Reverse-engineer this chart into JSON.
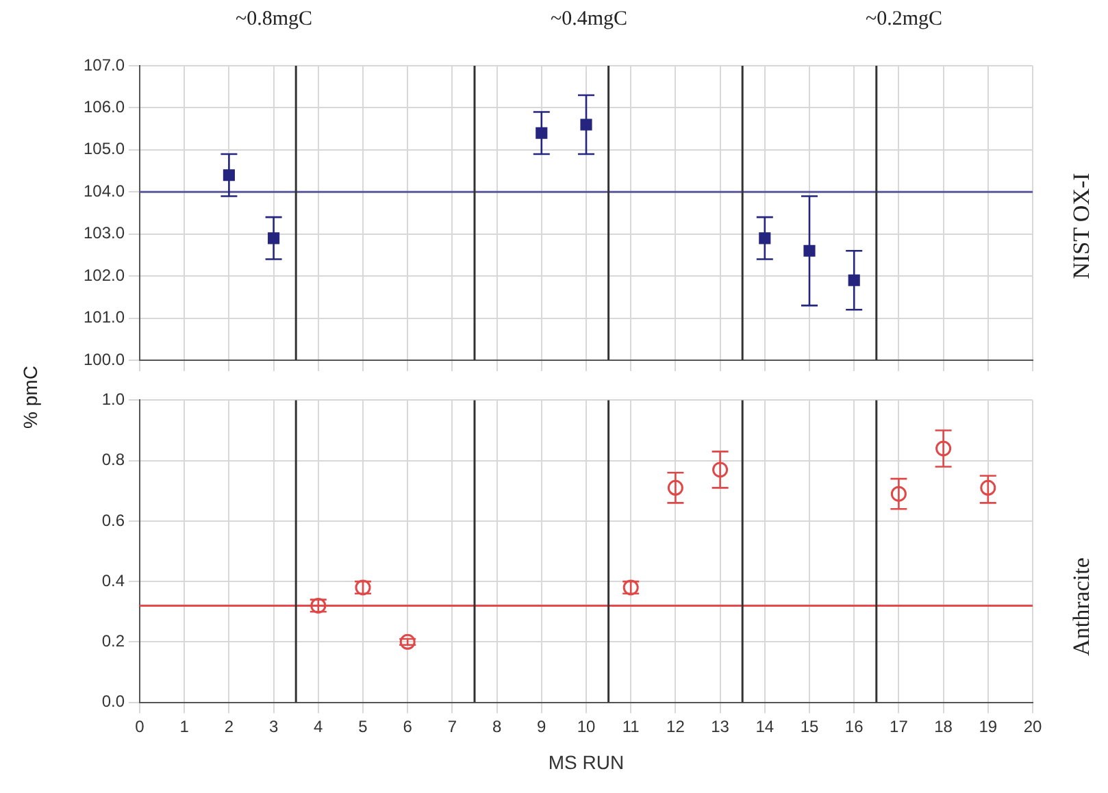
{
  "chart_data": [
    {
      "type": "scatter",
      "ylabel": null,
      "y2label": "NIST OX-I",
      "annotations": [
        "~0.8mgC",
        "~0.4mgC",
        "~0.2mgC"
      ],
      "xlim": [
        0,
        20
      ],
      "xticks": [
        0,
        1,
        2,
        3,
        4,
        5,
        6,
        7,
        8,
        9,
        10,
        11,
        12,
        13,
        14,
        15,
        16,
        17,
        18,
        19,
        20
      ],
      "ylim": [
        100,
        107
      ],
      "yticks": [
        {
          "value": 100,
          "label": "100.0"
        },
        {
          "value": 101,
          "label": "101.0"
        },
        {
          "value": 102,
          "label": "102.0"
        },
        {
          "value": 103,
          "label": "103.0"
        },
        {
          "value": 104,
          "label": "104.0"
        },
        {
          "value": 105,
          "label": "105.0"
        },
        {
          "value": 106,
          "label": "106.0"
        },
        {
          "value": 107,
          "label": "107.0"
        }
      ],
      "tick_labels": "y",
      "grid": true,
      "legend": false,
      "marker": "square",
      "series": [
        {
          "color": "#25257f",
          "x": [
            2,
            3,
            9,
            10,
            14,
            15,
            16
          ],
          "values": [
            104.4,
            102.9,
            105.4,
            105.6,
            102.9,
            102.6,
            101.9
          ],
          "errors": [
            [
              103.9,
              104.9
            ],
            [
              102.4,
              103.4
            ],
            [
              104.9,
              105.9
            ],
            [
              104.9,
              106.3
            ],
            [
              102.4,
              103.4
            ],
            [
              101.3,
              103.9
            ],
            [
              101.2,
              102.6
            ]
          ]
        }
      ],
      "ref_lines": [
        {
          "axis": "y",
          "value": 104,
          "color": "#5a5a9a"
        },
        {
          "axis": "x",
          "value": 3.5,
          "color": "#333333"
        },
        {
          "axis": "x",
          "value": 7.5,
          "color": "#333333"
        },
        {
          "axis": "x",
          "value": 10.5,
          "color": "#333333"
        },
        {
          "axis": "x",
          "value": 13.5,
          "color": "#333333"
        },
        {
          "axis": "x",
          "value": 16.5,
          "color": "#333333"
        }
      ]
    },
    {
      "type": "scatter",
      "ylabel": "% pmC",
      "xlabel": "MS RUN",
      "y2label": "Anthracite",
      "xlim": [
        0,
        20
      ],
      "xticks": [
        0,
        1,
        2,
        3,
        4,
        5,
        6,
        7,
        8,
        9,
        10,
        11,
        12,
        13,
        14,
        15,
        16,
        17,
        18,
        19,
        20
      ],
      "ylim": [
        0,
        1
      ],
      "yticks": [
        {
          "value": 0,
          "label": "0.0"
        },
        {
          "value": 0.2,
          "label": "0.2"
        },
        {
          "value": 0.4,
          "label": "0.4"
        },
        {
          "value": 0.6,
          "label": "0.6"
        },
        {
          "value": 0.8,
          "label": "0.8"
        },
        {
          "value": 1,
          "label": "1.0"
        }
      ],
      "grid": true,
      "legend": false,
      "marker": "circle",
      "series": [
        {
          "color": "#e04848",
          "x": [
            4,
            5,
            6,
            11,
            12,
            13,
            17,
            18,
            19
          ],
          "values": [
            0.32,
            0.38,
            0.2,
            0.38,
            0.71,
            0.77,
            0.69,
            0.84,
            0.71
          ],
          "errors": [
            [
              0.3,
              0.34
            ],
            [
              0.36,
              0.4
            ],
            [
              0.19,
              0.21
            ],
            [
              0.36,
              0.4
            ],
            [
              0.66,
              0.76
            ],
            [
              0.71,
              0.83
            ],
            [
              0.64,
              0.74
            ],
            [
              0.78,
              0.9
            ],
            [
              0.66,
              0.75
            ]
          ]
        }
      ],
      "ref_lines": [
        {
          "axis": "y",
          "value": 0.32,
          "color": "#e84848"
        },
        {
          "axis": "x",
          "value": 3.5,
          "color": "#333333"
        },
        {
          "axis": "x",
          "value": 7.5,
          "color": "#333333"
        },
        {
          "axis": "x",
          "value": 10.5,
          "color": "#333333"
        },
        {
          "axis": "x",
          "value": 13.5,
          "color": "#333333"
        },
        {
          "axis": "x",
          "value": 16.5,
          "color": "#333333"
        }
      ]
    }
  ]
}
